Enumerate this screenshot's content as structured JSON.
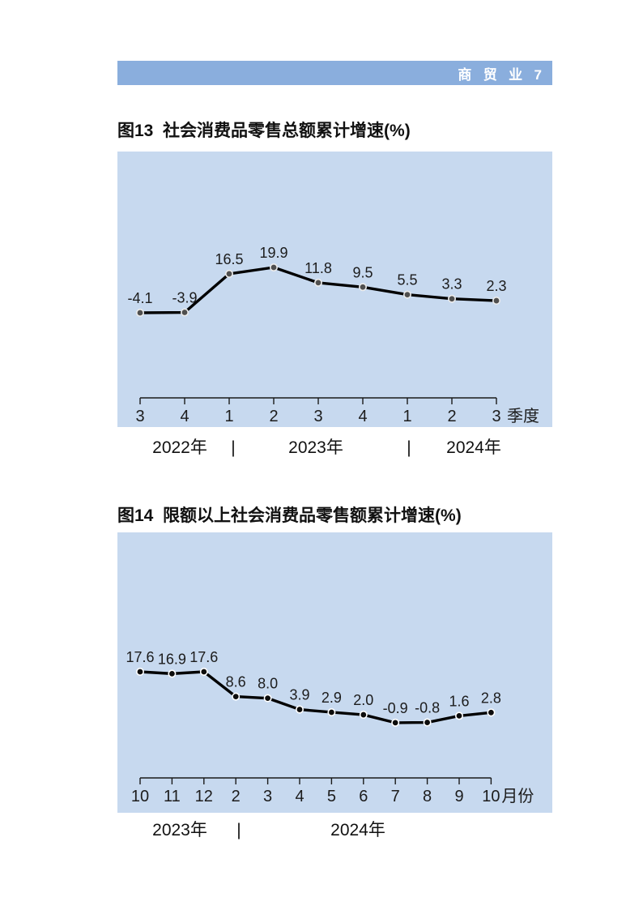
{
  "header": {
    "label": "商 贸 业 7"
  },
  "chart_data": [
    {
      "type": "line",
      "title": "图13  社会消费品零售总额累计增速(%)",
      "categories": [
        "3",
        "4",
        "1",
        "2",
        "3",
        "4",
        "1",
        "2",
        "3"
      ],
      "values": [
        -4.1,
        -3.9,
        16.5,
        19.9,
        11.8,
        9.5,
        5.5,
        3.3,
        2.3
      ],
      "value_labels": [
        "-4.1",
        "-3.9",
        "16.5",
        "19.9",
        "11.8",
        "9.5",
        "5.5",
        "3.3",
        "2.3"
      ],
      "x_unit": "季度",
      "year_row": [
        "2022年",
        "|",
        "2023年",
        "|",
        "2024年"
      ],
      "year_groups": [
        {
          "label": "2022年",
          "ticks": [
            "3",
            "4"
          ]
        },
        {
          "label": "2023年",
          "ticks": [
            "1",
            "2",
            "3",
            "4"
          ]
        },
        {
          "label": "2024年",
          "ticks": [
            "1",
            "2",
            "3"
          ]
        }
      ],
      "xlabel": "季度",
      "ylabel": "",
      "y_axis": "hidden",
      "grid": false,
      "legend": "none",
      "line_color": "#000000",
      "marker_fill": "#4f4f4f",
      "marker_ring": "#ececec",
      "axis_color": "#1a1a1a",
      "plot_bg": "#c7d9ef"
    },
    {
      "type": "line",
      "title": "图14  限额以上社会消费品零售额累计增速(%)",
      "categories": [
        "10",
        "11",
        "12",
        "2",
        "3",
        "4",
        "5",
        "6",
        "7",
        "8",
        "9",
        "10"
      ],
      "values": [
        17.6,
        16.9,
        17.6,
        8.6,
        8.0,
        3.9,
        2.9,
        2.0,
        -0.9,
        -0.8,
        1.6,
        2.8
      ],
      "value_labels": [
        "17.6",
        "16.9",
        "17.6",
        "8.6",
        "8.0",
        "3.9",
        "2.9",
        "2.0",
        "-0.9",
        "-0.8",
        "1.6",
        "2.8"
      ],
      "x_unit": "月份",
      "year_row": [
        "2023年",
        "|",
        "2024年"
      ],
      "year_groups": [
        {
          "label": "2023年",
          "ticks": [
            "10",
            "11",
            "12"
          ]
        },
        {
          "label": "2024年",
          "ticks": [
            "2",
            "3",
            "4",
            "5",
            "6",
            "7",
            "8",
            "9",
            "10"
          ]
        }
      ],
      "xlabel": "月份",
      "ylabel": "",
      "y_axis": "hidden",
      "grid": false,
      "legend": "none",
      "line_color": "#000000",
      "marker_fill": "#0d0d0d",
      "marker_ring": "#ffffff",
      "axis_color": "#1a1a1a",
      "plot_bg": "#c7d9ef"
    }
  ]
}
